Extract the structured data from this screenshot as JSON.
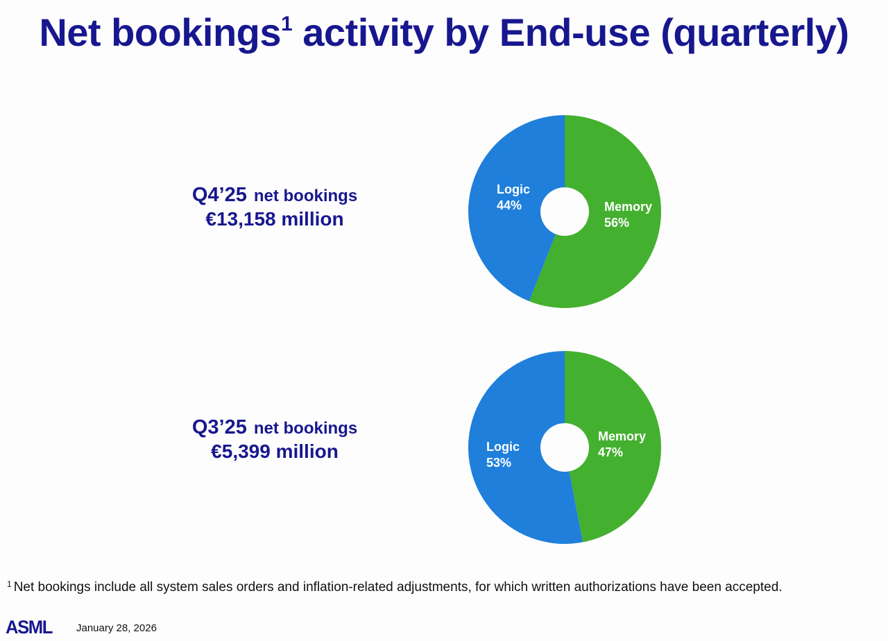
{
  "slide": {
    "title_main": "Net bookings",
    "title_sup": "1",
    "title_rest": " activity by End-use (quarterly)",
    "footnote_marker": "1",
    "footnote": "Net bookings include all system sales orders and inflation-related adjustments, for which written authorizations have been accepted.",
    "logo": "ASML",
    "date": "January 28, 2026"
  },
  "colors": {
    "title": "#17178f",
    "logic": "#1f7fdb",
    "memory": "#44b02f",
    "background": "#fdfdfd"
  },
  "charts": [
    {
      "quarter": "Q4’25",
      "subtitle": "net bookings",
      "total": "€13,158 million",
      "slices": [
        {
          "name": "Memory",
          "pct": "56%"
        },
        {
          "name": "Logic",
          "pct": "44%"
        }
      ]
    },
    {
      "quarter": "Q3’25",
      "subtitle": "net bookings",
      "total": "€5,399 million",
      "slices": [
        {
          "name": "Memory",
          "pct": "47%"
        },
        {
          "name": "Logic",
          "pct": "53%"
        }
      ]
    }
  ],
  "chart_data": [
    {
      "type": "pie",
      "title": "Q4'25 net bookings €13,158 million",
      "categories": [
        "Memory",
        "Logic"
      ],
      "values": [
        56,
        44
      ],
      "unit": "%",
      "total_eur_million": 13158,
      "donut": true
    },
    {
      "type": "pie",
      "title": "Q3'25 net bookings €5,399 million",
      "categories": [
        "Memory",
        "Logic"
      ],
      "values": [
        47,
        53
      ],
      "unit": "%",
      "total_eur_million": 5399,
      "donut": true
    }
  ]
}
